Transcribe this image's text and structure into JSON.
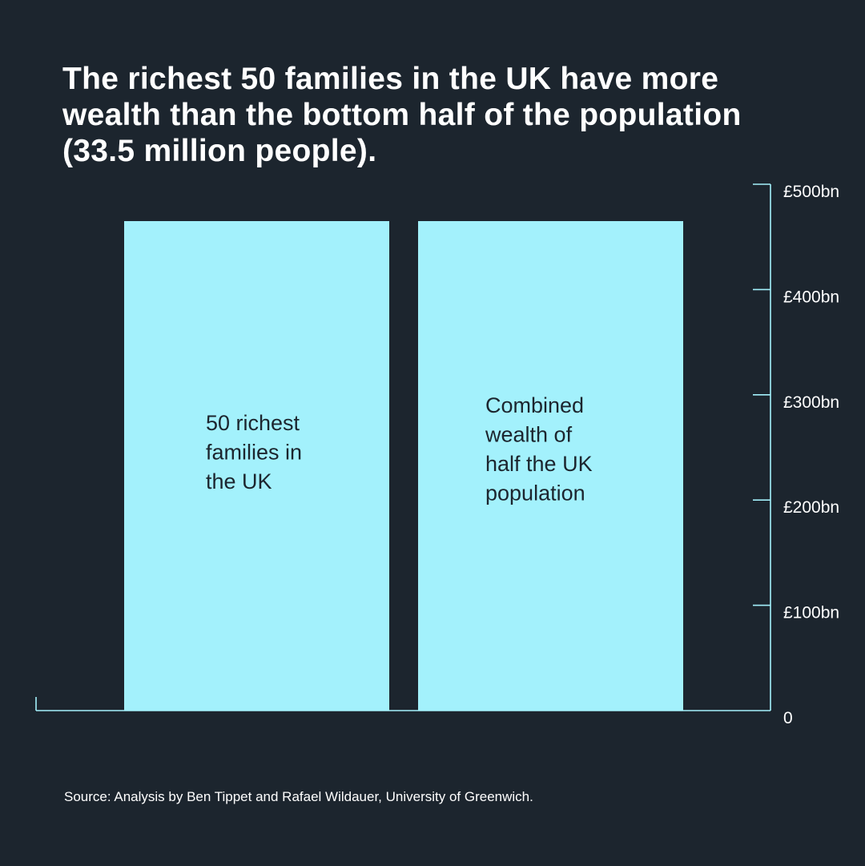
{
  "title": "The richest 50 families in the UK have more wealth than the bottom half of the population (33.5 million people).",
  "source": "Source: Analysis by Ben Tippet and Rafael Wildauer, University of Greenwich.",
  "colors": {
    "background": "#1c252e",
    "bar": "#a3f1fc",
    "axis": "#a3f1fc",
    "text": "#ffffff",
    "bar_label": "#1c252e"
  },
  "chart_data": {
    "type": "bar",
    "categories": [
      "50 richest families in the UK",
      "Combined wealth of half the UK population"
    ],
    "bar_labels": [
      [
        "50 richest",
        "families in",
        "the UK"
      ],
      [
        "Combined",
        "wealth of",
        "half the UK",
        "population"
      ]
    ],
    "values": [
      465,
      465
    ],
    "unit": "£bn",
    "ylim": [
      0,
      500
    ],
    "yticks": [
      0,
      100,
      200,
      300,
      400,
      500
    ],
    "ytick_labels": [
      "0",
      "£100bn",
      "£200bn",
      "£300bn",
      "£400bn",
      "£500bn"
    ],
    "y_axis_position": "right",
    "grid": false,
    "legend": "none"
  }
}
